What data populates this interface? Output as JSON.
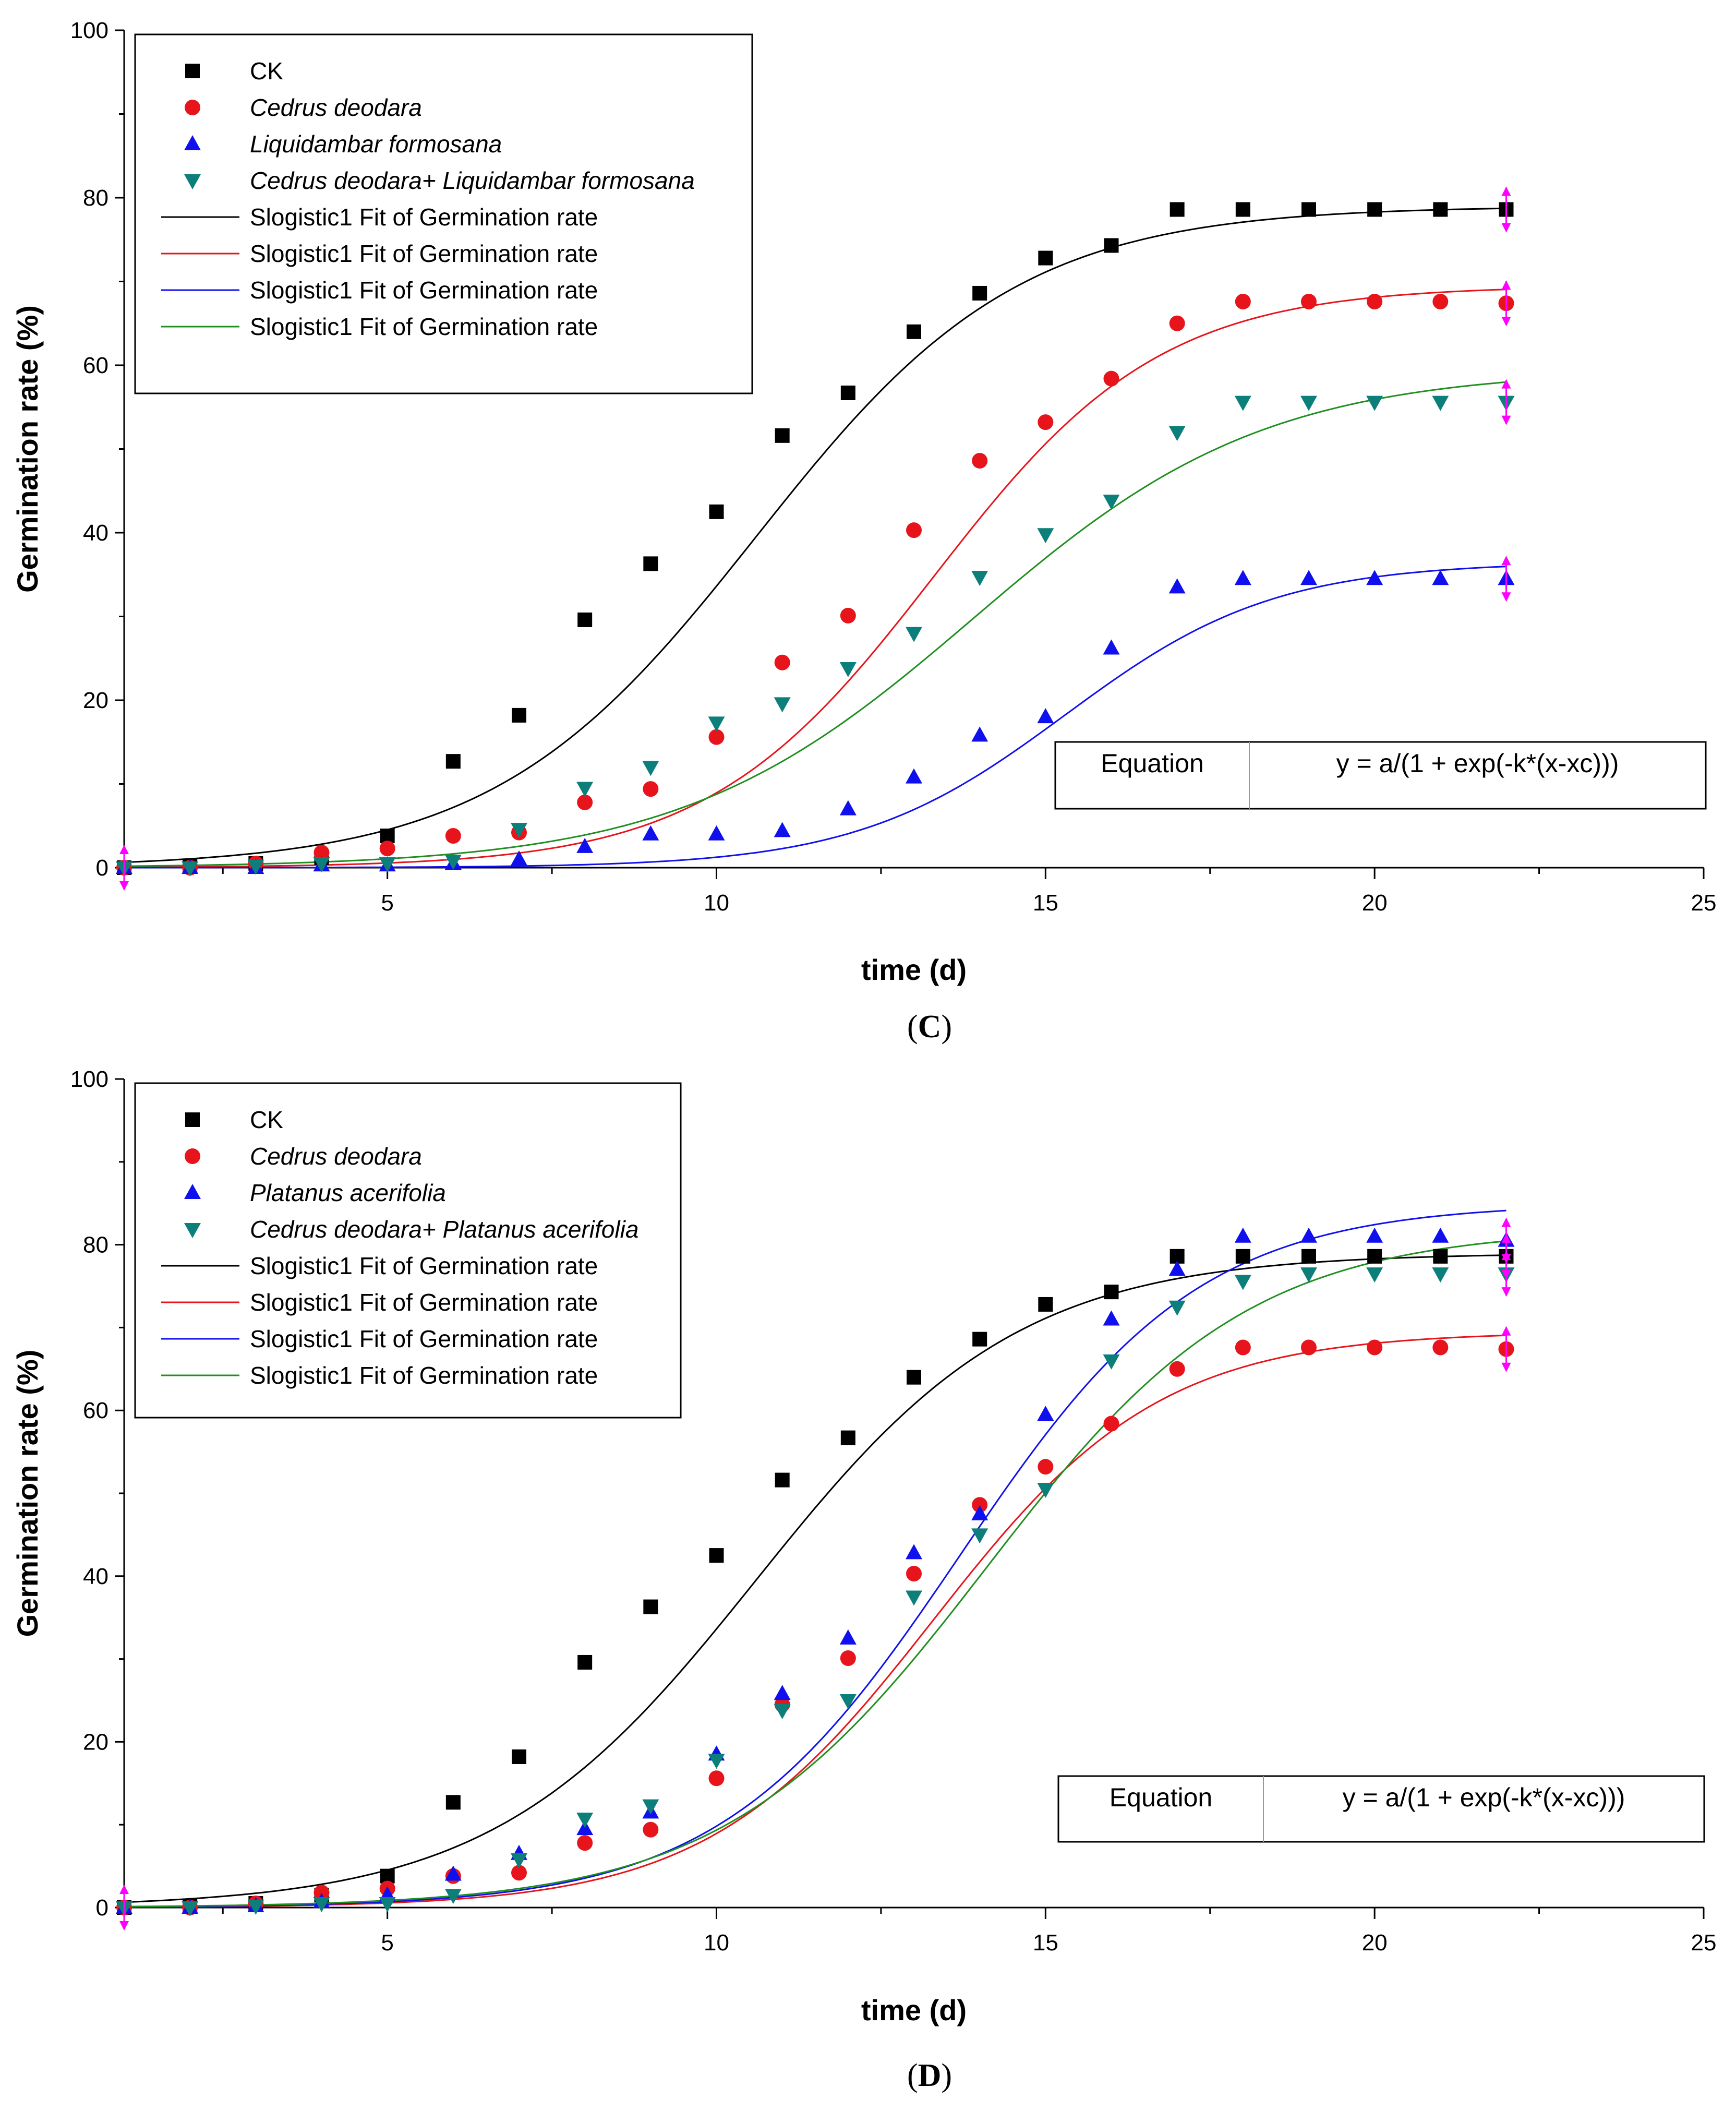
{
  "chart_data": [
    {
      "panel": "C",
      "panel_label": "C",
      "type": "scatter",
      "xlabel": "time (d)",
      "ylabel": "Germination rate (%)",
      "xlim": [
        1,
        25
      ],
      "ylim": [
        0,
        100
      ],
      "xticks": [
        5,
        10,
        15,
        20,
        25
      ],
      "yticks": [
        0,
        20,
        40,
        60,
        80,
        100
      ],
      "equation_label": "Equation",
      "equation": "y = a/(1 + exp(-k*(x-xc)))",
      "legend_position": "top-left",
      "series": [
        {
          "name": "CK",
          "italic": false,
          "marker": "square",
          "color": "#000000",
          "x": [
            1,
            2,
            3,
            4,
            5,
            6,
            7,
            8,
            9,
            10,
            11,
            12,
            13,
            14,
            15,
            16,
            17,
            18,
            19,
            20,
            21,
            22
          ],
          "y": [
            0,
            0.2,
            0.5,
            1.2,
            3.8,
            12.7,
            18.2,
            29.6,
            36.3,
            42.5,
            51.6,
            56.7,
            64.0,
            68.6,
            72.8,
            74.3,
            78.6,
            78.6,
            78.6,
            78.6,
            78.6,
            78.6
          ],
          "fit": {
            "name": "Slogistic1 Fit of Germination rate",
            "a": 79,
            "k": 0.5,
            "xc": 10.6
          }
        },
        {
          "name": "Cedrus deodara",
          "italic": true,
          "marker": "circle",
          "color": "#e8141b",
          "x": [
            1,
            2,
            3,
            4,
            5,
            6,
            7,
            8,
            9,
            10,
            11,
            12,
            13,
            14,
            15,
            16,
            17,
            18,
            19,
            20,
            21,
            22
          ],
          "y": [
            0,
            0,
            0.5,
            1.8,
            2.3,
            3.8,
            4.2,
            7.8,
            9.4,
            15.6,
            24.5,
            30.1,
            40.3,
            48.6,
            53.2,
            58.4,
            65.0,
            67.6,
            67.6,
            67.6,
            67.6,
            67.4
          ],
          "fit": {
            "name": "Slogistic1 Fit of Germination rate",
            "a": 69.5,
            "k": 0.58,
            "xc": 13.3
          }
        },
        {
          "name": "Liquidambar formosana",
          "italic": true,
          "marker": "triangle-up",
          "color": "#1010ee",
          "x": [
            1,
            2,
            3,
            4,
            5,
            6,
            7,
            8,
            9,
            10,
            11,
            12,
            13,
            14,
            15,
            16,
            17,
            18,
            19,
            20,
            21,
            22
          ],
          "y": [
            0,
            0,
            0,
            0.3,
            0.3,
            0.5,
            1.0,
            2.5,
            4.0,
            4.0,
            4.4,
            7.0,
            10.8,
            15.8,
            18.0,
            26.2,
            33.5,
            34.5,
            34.5,
            34.5,
            34.5,
            34.5
          ],
          "fit": {
            "name": "Slogistic1 Fit of Germination rate",
            "a": 36.5,
            "k": 0.63,
            "xc": 15.3
          }
        },
        {
          "name": "Cedrus deodara+ Liquidambar formosana",
          "italic": true,
          "marker": "triangle-down",
          "color": "#0d7f7a",
          "x": [
            1,
            2,
            3,
            4,
            5,
            6,
            7,
            8,
            9,
            10,
            11,
            12,
            13,
            14,
            15,
            16,
            17,
            18,
            19,
            20,
            21,
            22
          ],
          "y": [
            0,
            0,
            0.2,
            0.5,
            0.5,
            0.8,
            4.6,
            9.5,
            12.0,
            17.3,
            19.6,
            23.8,
            28.0,
            34.7,
            39.8,
            43.8,
            52.0,
            55.6,
            55.6,
            55.6,
            55.6,
            55.6
          ],
          "fit": {
            "name": "Slogistic1 Fit of Germination rate",
            "a": 59.5,
            "k": 0.45,
            "xc": 13.9
          }
        }
      ]
    },
    {
      "panel": "D",
      "panel_label": "D",
      "type": "scatter",
      "xlabel": "time (d)",
      "ylabel": "Germination rate (%)",
      "xlim": [
        1,
        25
      ],
      "ylim": [
        0,
        100
      ],
      "xticks": [
        5,
        10,
        15,
        20,
        25
      ],
      "yticks": [
        0,
        20,
        40,
        60,
        80,
        100
      ],
      "equation_label": "Equation",
      "equation": "y = a/(1 + exp(-k*(x-xc)))",
      "legend_position": "top-left",
      "series": [
        {
          "name": "CK",
          "italic": false,
          "marker": "square",
          "color": "#000000",
          "x": [
            1,
            2,
            3,
            4,
            5,
            6,
            7,
            8,
            9,
            10,
            11,
            12,
            13,
            14,
            15,
            16,
            17,
            18,
            19,
            20,
            21,
            22
          ],
          "y": [
            0,
            0.2,
            0.5,
            1.5,
            3.8,
            12.7,
            18.2,
            29.6,
            36.3,
            42.5,
            51.6,
            56.7,
            64.0,
            68.6,
            72.8,
            74.3,
            78.6,
            78.6,
            78.6,
            78.6,
            78.6,
            78.6
          ],
          "fit": {
            "name": "Slogistic1 Fit of Germination rate",
            "a": 79,
            "k": 0.5,
            "xc": 10.6
          }
        },
        {
          "name": "Cedrus deodara",
          "italic": true,
          "marker": "circle",
          "color": "#e8141b",
          "x": [
            1,
            2,
            3,
            4,
            5,
            6,
            7,
            8,
            9,
            10,
            11,
            12,
            13,
            14,
            15,
            16,
            17,
            18,
            19,
            20,
            21,
            22
          ],
          "y": [
            0,
            0,
            0.5,
            1.8,
            2.3,
            3.8,
            4.2,
            7.8,
            9.4,
            15.6,
            24.5,
            30.1,
            40.3,
            48.6,
            53.2,
            58.4,
            65.0,
            67.6,
            67.6,
            67.6,
            67.6,
            67.4
          ],
          "fit": {
            "name": "Slogistic1 Fit of Germination rate",
            "a": 69.5,
            "k": 0.58,
            "xc": 13.3
          }
        },
        {
          "name": "Platanus acerifolia",
          "italic": true,
          "marker": "triangle-up",
          "color": "#1010ee",
          "x": [
            1,
            2,
            3,
            4,
            5,
            6,
            7,
            8,
            9,
            10,
            11,
            12,
            13,
            14,
            15,
            16,
            17,
            18,
            19,
            20,
            21,
            22
          ],
          "y": [
            0,
            0,
            0.2,
            0.7,
            1.5,
            4.0,
            6.5,
            9.5,
            11.5,
            18.5,
            25.8,
            32.5,
            42.8,
            47.5,
            59.5,
            71.0,
            77.0,
            81.0,
            81.0,
            81.0,
            81.0,
            80.5
          ],
          "fit": {
            "name": "Slogistic1 Fit of Germination rate",
            "a": 85,
            "k": 0.55,
            "xc": 13.7
          }
        },
        {
          "name": "Cedrus deodara+ Platanus acerifolia",
          "italic": true,
          "marker": "triangle-down",
          "color": "#0d7f7a",
          "x": [
            1,
            2,
            3,
            4,
            5,
            6,
            7,
            8,
            9,
            10,
            11,
            12,
            13,
            14,
            15,
            16,
            17,
            18,
            19,
            20,
            21,
            22
          ],
          "y": [
            0,
            0,
            0.2,
            0.5,
            0.5,
            1.5,
            5.8,
            10.7,
            12.3,
            17.8,
            23.8,
            25.0,
            37.5,
            45.0,
            50.5,
            66.0,
            72.5,
            75.6,
            76.5,
            76.5,
            76.5,
            76.5
          ],
          "fit": {
            "name": "Slogistic1 Fit of Germination rate",
            "a": 82,
            "k": 0.5,
            "xc": 14.1
          }
        }
      ]
    }
  ]
}
